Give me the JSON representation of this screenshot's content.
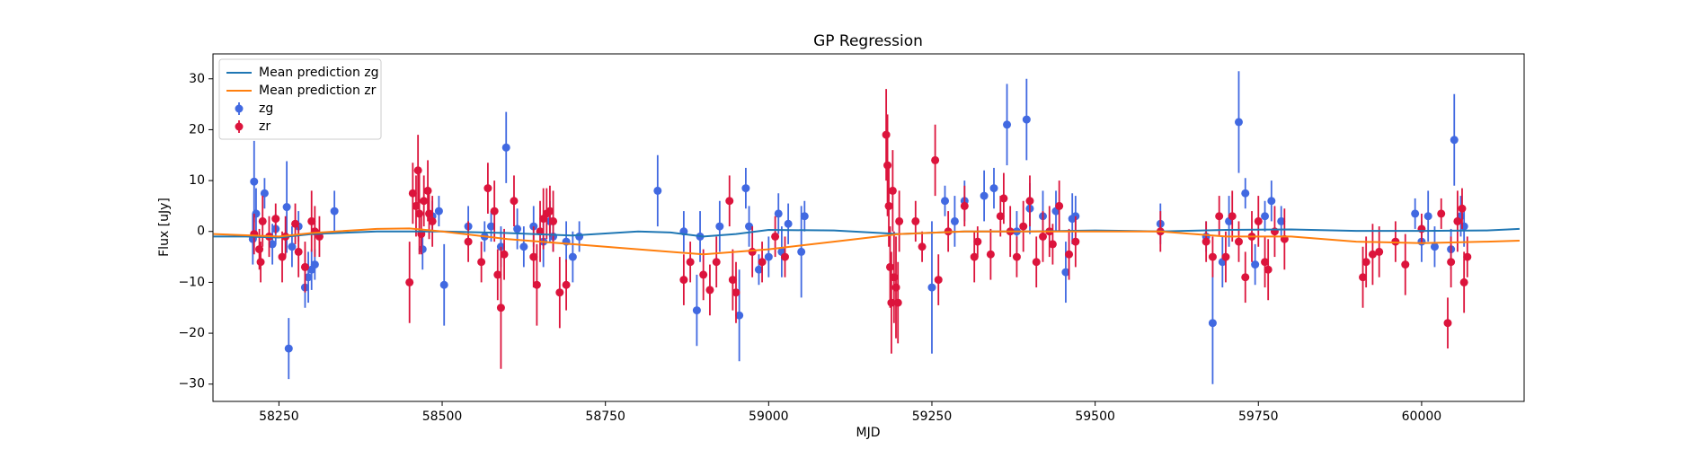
{
  "chart_data": {
    "type": "errorbar",
    "title": "GP Regression",
    "x_label": "MJD",
    "y_label": "Flux [uJy]",
    "xlim": [
      58149,
      60157
    ],
    "xticks": [
      58250,
      58500,
      58750,
      59000,
      59250,
      59500,
      59750,
      60000
    ],
    "ylim": [
      -33.4,
      34.9
    ],
    "yticks": [
      {
        "value": -30,
        "label": "−30"
      },
      {
        "value": -20,
        "label": "−20"
      },
      {
        "value": -10,
        "label": "−10"
      },
      0,
      10,
      20,
      30
    ],
    "legend": "upper left",
    "series": [
      {
        "name": "Mean prediction zg",
        "type": "line",
        "color": "#1f77b4",
        "x": [
          58150,
          58200,
          58250,
          58300,
          58400,
          58500,
          58600,
          58700,
          58800,
          58850,
          58900,
          58950,
          59000,
          59100,
          59200,
          59300,
          59400,
          59500,
          59600,
          59700,
          59800,
          59900,
          60000,
          60100,
          60150
        ],
        "values": [
          -1,
          -1,
          -1.2,
          -0.5,
          0,
          0,
          -0.3,
          -0.8,
          0,
          -0.2,
          -1,
          -0.5,
          0.3,
          0.2,
          -0.5,
          0,
          0,
          0.2,
          0,
          0.3,
          0.4,
          0.1,
          0.1,
          0.2,
          0.5
        ]
      },
      {
        "name": "Mean prediction zr",
        "type": "line",
        "color": "#ff7f0e",
        "x": [
          58150,
          58250,
          58300,
          58400,
          58450,
          58500,
          58600,
          58700,
          58800,
          58900,
          59000,
          59100,
          59200,
          59300,
          59400,
          59500,
          59600,
          59700,
          59800,
          59900,
          60000,
          60100,
          60150
        ],
        "values": [
          -0.5,
          -1,
          -0.3,
          0.5,
          0.6,
          0,
          -1.5,
          -2.5,
          -3.5,
          -4.5,
          -3.5,
          -2,
          -0.5,
          0,
          0,
          0,
          0,
          -1,
          -1,
          -2,
          -2.3,
          -2,
          -1.8
        ]
      },
      {
        "name": "zg",
        "type": "errorbar",
        "color": "#4169e1",
        "x": [
          58210,
          58212,
          58215,
          58228,
          58240,
          58245,
          58262,
          58265,
          58270,
          58280,
          58290,
          58295,
          58300,
          58305,
          58335,
          58470,
          58485,
          58495,
          58503,
          58540,
          58565,
          58575,
          58590,
          58598,
          58615,
          58625,
          58640,
          58655,
          58665,
          58670,
          58690,
          58700,
          58710,
          58830,
          58870,
          58890,
          58895,
          58925,
          58955,
          58965,
          58970,
          58985,
          59000,
          59015,
          59020,
          59030,
          59050,
          59055,
          59250,
          59270,
          59285,
          59300,
          59330,
          59345,
          59365,
          59380,
          59395,
          59400,
          59420,
          59440,
          59455,
          59465,
          59470,
          59600,
          59670,
          59680,
          59695,
          59705,
          59720,
          59730,
          59745,
          59760,
          59770,
          59785,
          59990,
          60000,
          60010,
          60020,
          60045,
          60050,
          60060,
          60065
        ],
        "values": [
          -1.5,
          9.8,
          3.5,
          7.5,
          -2.5,
          0.5,
          4.8,
          -23,
          -3,
          1,
          -11,
          -9,
          -7.5,
          -6.5,
          4,
          -3.5,
          3,
          4,
          -10.5,
          1,
          -1,
          1,
          -3,
          16.5,
          0.5,
          -3,
          1,
          -2,
          2,
          -1,
          -2,
          -5,
          -1,
          8,
          0,
          -15.5,
          -1,
          1,
          -16.5,
          8.5,
          1,
          -7.5,
          -5,
          3.5,
          -4,
          1.5,
          -4,
          3,
          -11,
          6,
          2,
          6,
          7,
          8.5,
          21,
          0,
          22,
          4.5,
          3,
          4,
          -8,
          2.5,
          3,
          1.5,
          -1,
          -18,
          -6,
          2,
          21.5,
          7.5,
          -6.5,
          3,
          6,
          2,
          3.5,
          -2,
          3,
          -3,
          -3.5,
          18,
          3,
          1
        ],
        "errors": [
          5,
          8,
          5,
          3,
          4,
          3,
          9,
          6,
          4,
          3,
          4,
          5,
          4,
          3,
          4,
          4,
          3,
          3,
          8,
          4,
          3,
          3,
          4,
          7,
          4,
          4,
          4,
          5,
          4,
          3,
          4,
          5,
          3,
          7,
          4,
          7,
          5,
          5,
          9,
          4,
          4,
          3,
          4,
          4,
          5,
          4,
          9,
          3,
          13,
          3,
          5,
          4,
          5,
          4,
          8,
          4,
          8,
          5,
          5,
          4,
          6,
          5,
          4,
          4,
          3,
          12,
          5,
          5,
          10,
          3,
          4,
          3,
          4,
          3,
          3,
          4,
          5,
          4,
          4,
          9,
          4,
          4
        ]
      },
      {
        "name": "zr",
        "type": "errorbar",
        "color": "#dc143c",
        "x": [
          58212,
          58220,
          58222,
          58225,
          58235,
          58245,
          58255,
          58260,
          58275,
          58280,
          58290,
          58300,
          58305,
          58312,
          58450,
          58455,
          58460,
          58463,
          58465,
          58468,
          58472,
          58478,
          58480,
          58485,
          58540,
          58560,
          58570,
          58580,
          58585,
          58590,
          58595,
          58610,
          58640,
          58645,
          58650,
          58655,
          58660,
          58665,
          58670,
          58680,
          58690,
          58870,
          58880,
          58900,
          58910,
          58920,
          58940,
          58945,
          58950,
          58975,
          58990,
          59010,
          59025,
          59180,
          59182,
          59184,
          59186,
          59188,
          59190,
          59192,
          59195,
          59198,
          59200,
          59225,
          59235,
          59255,
          59260,
          59275,
          59300,
          59315,
          59320,
          59340,
          59355,
          59360,
          59370,
          59380,
          59390,
          59400,
          59410,
          59420,
          59430,
          59435,
          59445,
          59460,
          59470,
          59600,
          59670,
          59680,
          59690,
          59700,
          59710,
          59720,
          59730,
          59740,
          59750,
          59760,
          59765,
          59775,
          59790,
          59910,
          59915,
          59925,
          59935,
          59960,
          59975,
          60000,
          60030,
          60040,
          60045,
          60055,
          60062,
          60065,
          60070
        ],
        "values": [
          -0.5,
          -3.5,
          -6,
          2,
          -1,
          2.5,
          -5,
          -1,
          1.5,
          -4,
          -7,
          2,
          0,
          -1,
          -10,
          7.5,
          5,
          12,
          3.5,
          -0.5,
          6,
          8,
          3.5,
          2,
          -2,
          -6,
          8.5,
          4,
          -8.5,
          -15,
          -4.5,
          6,
          -5,
          -10.5,
          0,
          2.5,
          3.5,
          4,
          2,
          -12,
          -10.5,
          -9.5,
          -6,
          -8.5,
          -11.5,
          -6,
          6,
          -9.5,
          -12,
          -4,
          -6,
          -1,
          -5,
          19,
          13,
          5,
          -7,
          -14,
          8,
          -9,
          -11,
          -14,
          2,
          2,
          -3,
          14,
          -9.5,
          0,
          5,
          -5,
          -2,
          -4.5,
          3,
          6.5,
          0,
          -5,
          1,
          6,
          -6,
          -1,
          0,
          -2.5,
          5,
          -4.5,
          -2,
          0,
          -2,
          -5,
          3,
          -5,
          3,
          -2,
          -9,
          -1,
          2,
          -6,
          -7.5,
          0,
          -1.5,
          -9,
          -6,
          -4.5,
          -4,
          -2,
          -6.5,
          0.5,
          3.5,
          -18,
          -6,
          2,
          4.5,
          -10,
          -5
        ],
        "errors": [
          4,
          4,
          4,
          5,
          4,
          3,
          5,
          4,
          4,
          5,
          5,
          6,
          5,
          4,
          8,
          6,
          6,
          7,
          8,
          4,
          5,
          6,
          5,
          5,
          4,
          4,
          5,
          6,
          5,
          12,
          5,
          5,
          6,
          8,
          6,
          6,
          5,
          5,
          6,
          7,
          5,
          5,
          4,
          5,
          5,
          5,
          5,
          6,
          6,
          5,
          4,
          4,
          4,
          9,
          10,
          8,
          8,
          10,
          8,
          9,
          10,
          8,
          6,
          4,
          3,
          7,
          5,
          4,
          4,
          5,
          3,
          5,
          4,
          5,
          5,
          4,
          5,
          5,
          5,
          5,
          5,
          4,
          5,
          5,
          5,
          4,
          4,
          4,
          4,
          5,
          5,
          4,
          5,
          5,
          5,
          5,
          6,
          5,
          6,
          6,
          5,
          6,
          5,
          4,
          6,
          3,
          3,
          5,
          5,
          6,
          4,
          6,
          4
        ]
      }
    ]
  }
}
